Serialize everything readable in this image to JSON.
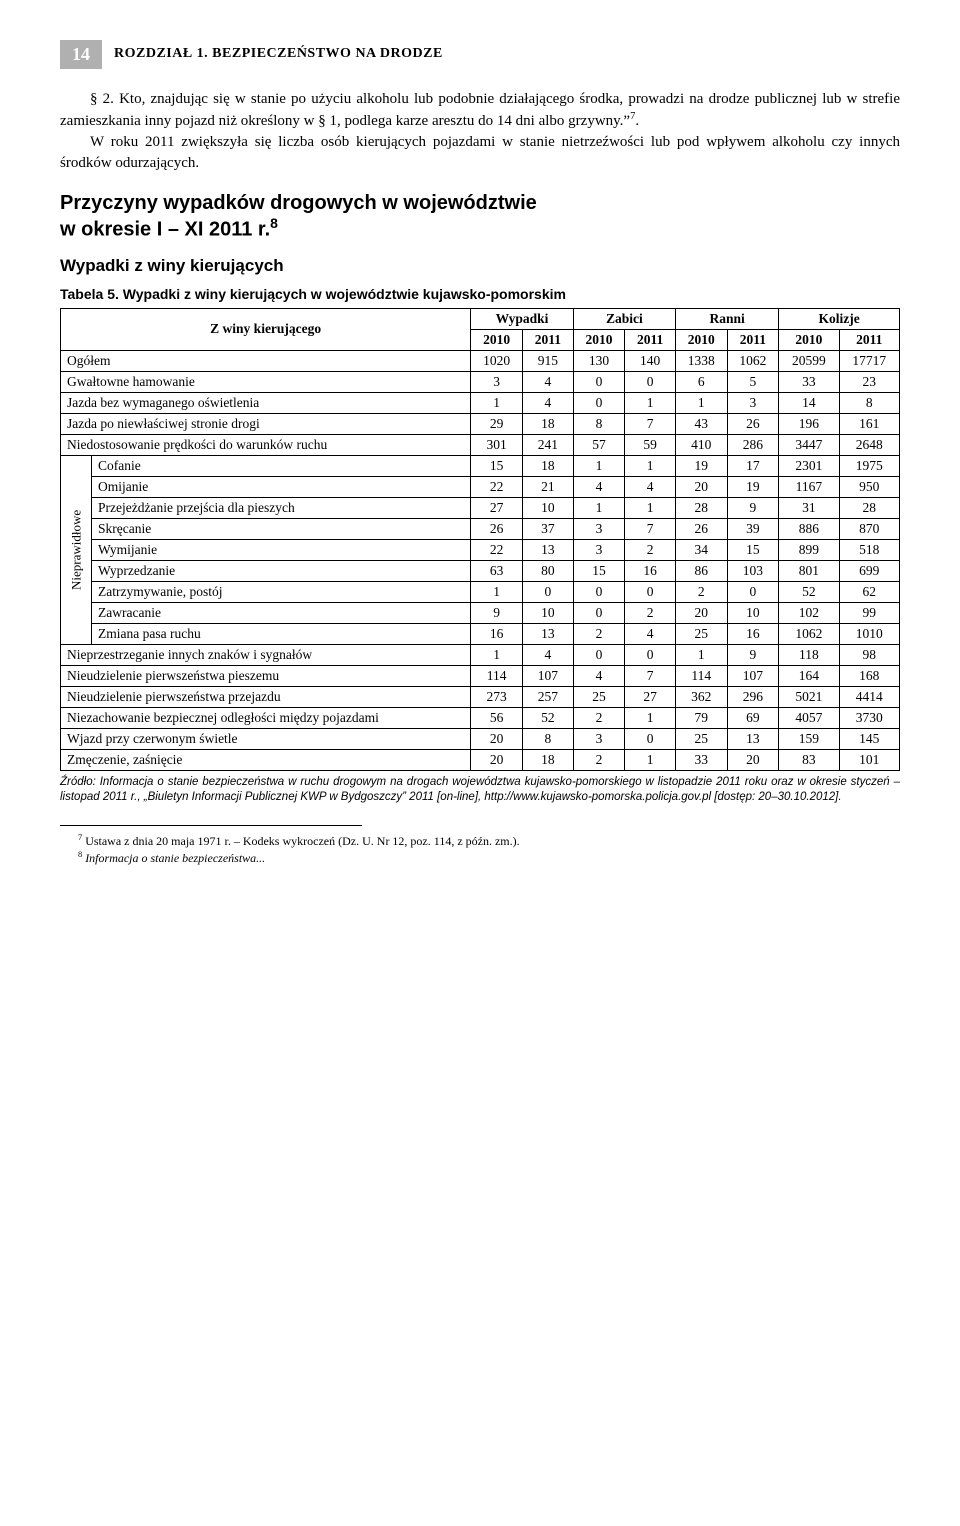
{
  "header": {
    "page_number": "14",
    "chapter_title": "ROZDZIAŁ 1. BEZPIECZEŃSTWO NA DRODZE"
  },
  "paragraph": {
    "para1": "§ 2. Kto, znajdując się w stanie po użyciu alkoholu lub podobnie działającego środka, prowadzi na drodze publicznej lub w strefie zamieszkania inny pojazd niż określony w § 1, podlega karze aresztu do 14 dni albo grzywny.”",
    "para1_sup": "7",
    "para1_period": ".",
    "para2": "W roku 2011 zwiększyła się liczba osób kierujących pojazdami w stanie nietrzeźwości lub pod wpływem alkoholu czy innych środków odurzających."
  },
  "section_heading_line1": "Przyczyny wypadków drogowych w województwie",
  "section_heading_line2": "w okresie I – XI 2011 r.",
  "section_heading_sup": "8",
  "sub_heading": "Wypadki z winy kierujących",
  "table_caption": "Tabela 5. Wypadki z winy kierujących w województwie kujawsko-pomorskim",
  "table": {
    "col_groups": [
      "Wypadki",
      "Zabici",
      "Ranni",
      "Kolizje"
    ],
    "years": [
      "2010",
      "2011",
      "2010",
      "2011",
      "2010",
      "2011",
      "2010",
      "2011"
    ],
    "row_header": "Z winy kierującego",
    "vertical_label": "Nieprawidłowe",
    "rows": [
      {
        "label": "Ogółem",
        "vals": [
          "1020",
          "915",
          "130",
          "140",
          "1338",
          "1062",
          "20599",
          "17717"
        ]
      },
      {
        "label": "Gwałtowne hamowanie",
        "vals": [
          "3",
          "4",
          "0",
          "0",
          "6",
          "5",
          "33",
          "23"
        ]
      },
      {
        "label": "Jazda bez wymaganego oświetlenia",
        "vals": [
          "1",
          "4",
          "0",
          "1",
          "1",
          "3",
          "14",
          "8"
        ]
      },
      {
        "label": "Jazda po niewłaściwej stronie drogi",
        "vals": [
          "29",
          "18",
          "8",
          "7",
          "43",
          "26",
          "196",
          "161"
        ]
      },
      {
        "label": "Niedostosowanie prędkości do warunków ruchu",
        "vals": [
          "301",
          "241",
          "57",
          "59",
          "410",
          "286",
          "3447",
          "2648"
        ]
      },
      {
        "label": "Cofanie",
        "vals": [
          "15",
          "18",
          "1",
          "1",
          "19",
          "17",
          "2301",
          "1975"
        ],
        "sub": true
      },
      {
        "label": "Omijanie",
        "vals": [
          "22",
          "21",
          "4",
          "4",
          "20",
          "19",
          "1167",
          "950"
        ],
        "sub": true
      },
      {
        "label": "Przejeżdżanie przejścia dla pieszych",
        "vals": [
          "27",
          "10",
          "1",
          "1",
          "28",
          "9",
          "31",
          "28"
        ],
        "sub": true
      },
      {
        "label": "Skręcanie",
        "vals": [
          "26",
          "37",
          "3",
          "7",
          "26",
          "39",
          "886",
          "870"
        ],
        "sub": true
      },
      {
        "label": "Wymijanie",
        "vals": [
          "22",
          "13",
          "3",
          "2",
          "34",
          "15",
          "899",
          "518"
        ],
        "sub": true
      },
      {
        "label": "Wyprzedzanie",
        "vals": [
          "63",
          "80",
          "15",
          "16",
          "86",
          "103",
          "801",
          "699"
        ],
        "sub": true
      },
      {
        "label": "Zatrzymywanie, postój",
        "vals": [
          "1",
          "0",
          "0",
          "0",
          "2",
          "0",
          "52",
          "62"
        ],
        "sub": true
      },
      {
        "label": "Zawracanie",
        "vals": [
          "9",
          "10",
          "0",
          "2",
          "20",
          "10",
          "102",
          "99"
        ],
        "sub": true
      },
      {
        "label": "Zmiana pasa ruchu",
        "vals": [
          "16",
          "13",
          "2",
          "4",
          "25",
          "16",
          "1062",
          "1010"
        ],
        "sub": true
      },
      {
        "label": "Nieprzestrzeganie innych znaków i sygnałów",
        "vals": [
          "1",
          "4",
          "0",
          "0",
          "1",
          "9",
          "118",
          "98"
        ]
      },
      {
        "label": "Nieudzielenie pierwszeństwa pieszemu",
        "vals": [
          "114",
          "107",
          "4",
          "7",
          "114",
          "107",
          "164",
          "168"
        ]
      },
      {
        "label": "Nieudzielenie pierwszeństwa przejazdu",
        "vals": [
          "273",
          "257",
          "25",
          "27",
          "362",
          "296",
          "5021",
          "4414"
        ]
      },
      {
        "label": "Niezachowanie bezpiecznej odległości między pojazdami",
        "vals": [
          "56",
          "52",
          "2",
          "1",
          "79",
          "69",
          "4057",
          "3730"
        ]
      },
      {
        "label": "Wjazd przy czerwonym świetle",
        "vals": [
          "20",
          "8",
          "3",
          "0",
          "25",
          "13",
          "159",
          "145"
        ]
      },
      {
        "label": "Zmęczenie, zaśnięcie",
        "vals": [
          "20",
          "18",
          "2",
          "1",
          "33",
          "20",
          "83",
          "101"
        ]
      }
    ]
  },
  "source_note": "Źródło: Informacja o stanie bezpieczeństwa w ruchu drogowym na drogach województwa kujawsko-pomorskiego w listopadzie 2011 roku oraz w okresie styczeń – listopad 2011 r., „Biuletyn Informacji Publicznej KWP w Bydgoszczy” 2011 [on-line], http://www.kujawsko-pomorska.policja.gov.pl [dostęp: 20–30.10.2012].",
  "footnotes": {
    "fn7_num": "7",
    "fn7_text": " Ustawa z dnia 20 maja 1971 r. – Kodeks wykroczeń (Dz. U. Nr 12, poz. 114, z późn. zm.).",
    "fn8_num": "8",
    "fn8_text_italic": " Informacja o stanie bezpieczeństwa...",
    "fn8_text_rest": ""
  }
}
